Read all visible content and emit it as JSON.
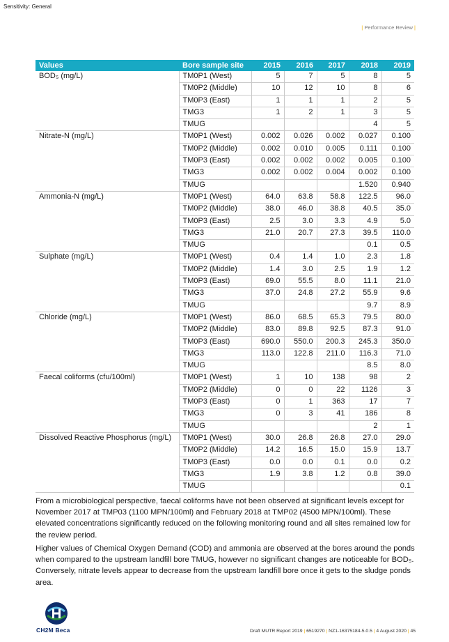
{
  "sensitivity": "Sensitivity: General",
  "header": {
    "section": "Performance Review"
  },
  "table": {
    "headers": [
      "Values",
      "Bore sample site",
      "2015",
      "2016",
      "2017",
      "2018",
      "2019"
    ],
    "groups": [
      {
        "param": "BOD₅ (mg/L)",
        "rows": [
          [
            "TM0P1 (West)",
            "5",
            "7",
            "5",
            "8",
            "5"
          ],
          [
            "TM0P2 (Middle)",
            "10",
            "12",
            "10",
            "8",
            "6"
          ],
          [
            "TM0P3 (East)",
            "1",
            "1",
            "1",
            "2",
            "5"
          ],
          [
            "TMG3",
            "1",
            "2",
            "1",
            "3",
            "5"
          ],
          [
            "TMUG",
            "",
            "",
            "",
            "4",
            "5"
          ]
        ]
      },
      {
        "param": "Nitrate-N (mg/L)",
        "rows": [
          [
            "TM0P1 (West)",
            "0.002",
            "0.026",
            "0.002",
            "0.027",
            "0.100"
          ],
          [
            "TM0P2 (Middle)",
            "0.002",
            "0.010",
            "0.005",
            "0.111",
            "0.100"
          ],
          [
            "TM0P3 (East)",
            "0.002",
            "0.002",
            "0.002",
            "0.005",
            "0.100"
          ],
          [
            "TMG3",
            "0.002",
            "0.002",
            "0.004",
            "0.002",
            "0.100"
          ],
          [
            "TMUG",
            "",
            "",
            "",
            "1.520",
            "0.940"
          ]
        ]
      },
      {
        "param": "Ammonia-N (mg/L)",
        "rows": [
          [
            "TM0P1 (West)",
            "64.0",
            "63.8",
            "58.8",
            "122.5",
            "96.0"
          ],
          [
            "TM0P2 (Middle)",
            "38.0",
            "46.0",
            "38.8",
            "40.5",
            "35.0"
          ],
          [
            "TM0P3 (East)",
            "2.5",
            "3.0",
            "3.3",
            "4.9",
            "5.0"
          ],
          [
            "TMG3",
            "21.0",
            "20.7",
            "27.3",
            "39.5",
            "110.0"
          ],
          [
            "TMUG",
            "",
            "",
            "",
            "0.1",
            "0.5"
          ]
        ]
      },
      {
        "param": "Sulphate (mg/L)",
        "rows": [
          [
            "TM0P1 (West)",
            "0.4",
            "1.4",
            "1.0",
            "2.3",
            "1.8"
          ],
          [
            "TM0P2 (Middle)",
            "1.4",
            "3.0",
            "2.5",
            "1.9",
            "1.2"
          ],
          [
            "TM0P3 (East)",
            "69.0",
            "55.5",
            "8.0",
            "11.1",
            "21.0"
          ],
          [
            "TMG3",
            "37.0",
            "24.8",
            "27.2",
            "55.9",
            "9.6"
          ],
          [
            "TMUG",
            "",
            "",
            "",
            "9.7",
            "8.9"
          ]
        ]
      },
      {
        "param": "Chloride (mg/L)",
        "rows": [
          [
            "TM0P1 (West)",
            "86.0",
            "68.5",
            "65.3",
            "79.5",
            "80.0"
          ],
          [
            "TM0P2 (Middle)",
            "83.0",
            "89.8",
            "92.5",
            "87.3",
            "91.0"
          ],
          [
            "TM0P3 (East)",
            "690.0",
            "550.0",
            "200.3",
            "245.3",
            "350.0"
          ],
          [
            "TMG3",
            "113.0",
            "122.8",
            "211.0",
            "116.3",
            "71.0"
          ],
          [
            "TMUG",
            "",
            "",
            "",
            "8.5",
            "8.0"
          ]
        ]
      },
      {
        "param": "Faecal coliforms (cfu/100ml)",
        "rows": [
          [
            "TM0P1 (West)",
            "1",
            "10",
            "138",
            "98",
            "2"
          ],
          [
            "TM0P2 (Middle)",
            "0",
            "0",
            "22",
            "1126",
            "3"
          ],
          [
            "TM0P3 (East)",
            "0",
            "1",
            "363",
            "17",
            "7"
          ],
          [
            "TMG3",
            "0",
            "3",
            "41",
            "186",
            "8"
          ],
          [
            "TMUG",
            "",
            "",
            "",
            "2",
            "1"
          ]
        ]
      },
      {
        "param": "Dissolved Reactive Phosphorus (mg/L)",
        "rows": [
          [
            "TM0P1 (West)",
            "30.0",
            "26.8",
            "26.8",
            "27.0",
            "29.0"
          ],
          [
            "TM0P2 (Middle)",
            "14.2",
            "16.5",
            "15.0",
            "15.9",
            "13.7"
          ],
          [
            "TM0P3 (East)",
            "0.0",
            "0.0",
            "0.1",
            "0.0",
            "0.2"
          ],
          [
            "TMG3",
            "1.9",
            "3.8",
            "1.2",
            "0.8",
            "39.0"
          ],
          [
            "TMUG",
            "",
            "",
            "",
            "",
            "0.1"
          ]
        ]
      }
    ]
  },
  "paragraphs": {
    "p1": "From a microbiological perspective, faecal coliforms have not been observed at significant levels except for November 2017 at TMP03 (1100 MPN/100ml) and February 2018 at TMP02 (4500 MPN/100ml). These elevated concentrations significantly reduced on the following monitoring round and all sites remained low for the review period.",
    "p2": "Higher values of Chemical Oxygen Demand (COD) and ammonia are observed at the bores around the ponds when compared to the upstream landfill bore TMUG, however no significant changes are noticeable for BOD₅. Conversely, nitrate levels appear to decrease from the upstream landfill bore once it gets to the sludge ponds area."
  },
  "logo": {
    "text": "CH2M Beca"
  },
  "footer": {
    "doc": "Draft MUTR Report 2019",
    "project": "6519270",
    "ref": "NZ1-16375184-5.0.5",
    "date": "4 August 2020",
    "page": "45"
  },
  "colors": {
    "header_bg": "#18a9c4",
    "accent": "#f2b100"
  }
}
